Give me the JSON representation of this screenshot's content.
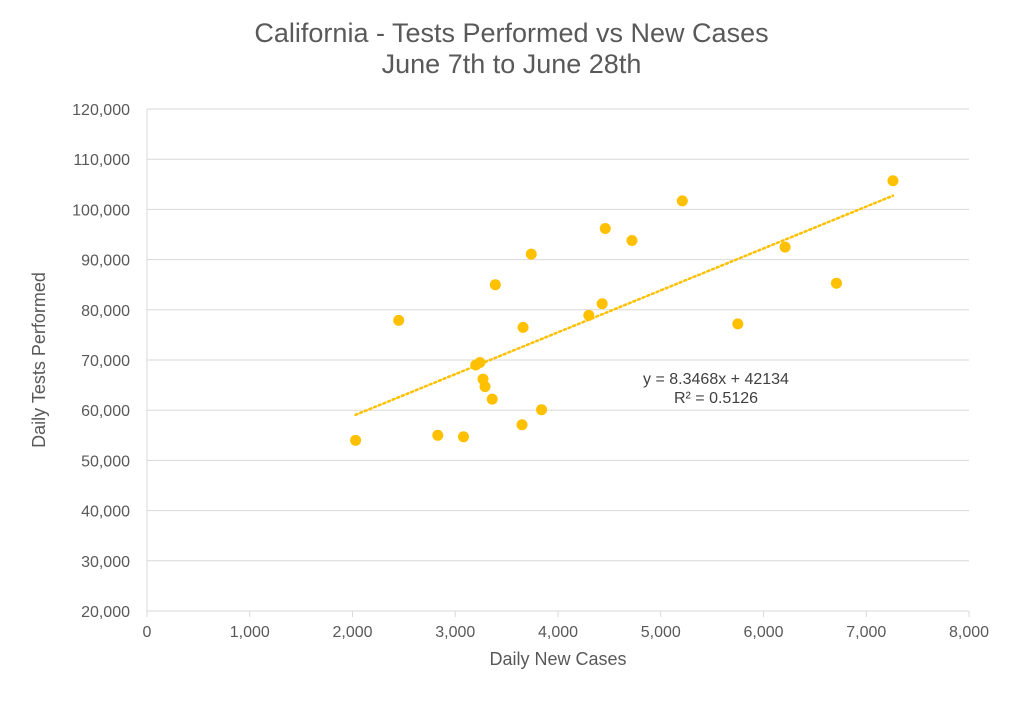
{
  "chart_data": {
    "type": "scatter",
    "title": "California - Tests Performed vs New Cases",
    "subtitle": "June 7th to June 28th",
    "xlabel": "Daily New Cases",
    "ylabel": "Daily Tests Performed",
    "xlim": [
      0,
      8000
    ],
    "ylim": [
      20000,
      120000
    ],
    "x_ticks": [
      0,
      1000,
      2000,
      3000,
      4000,
      5000,
      6000,
      7000,
      8000
    ],
    "y_ticks": [
      20000,
      30000,
      40000,
      50000,
      60000,
      70000,
      80000,
      90000,
      100000,
      110000,
      120000
    ],
    "x_tick_labels": [
      "0",
      "1,000",
      "2,000",
      "3,000",
      "4,000",
      "5,000",
      "6,000",
      "7,000",
      "8,000"
    ],
    "y_tick_labels": [
      "20,000",
      "30,000",
      "40,000",
      "50,000",
      "60,000",
      "70,000",
      "80,000",
      "90,000",
      "100,000",
      "110,000",
      "120,000"
    ],
    "grid": true,
    "series": [
      {
        "name": "Daily Tests Performed",
        "color": "#FFC000",
        "points": [
          {
            "x": 2030,
            "y": 54000
          },
          {
            "x": 2450,
            "y": 77900
          },
          {
            "x": 2830,
            "y": 55000
          },
          {
            "x": 3080,
            "y": 54700
          },
          {
            "x": 3200,
            "y": 69000
          },
          {
            "x": 3240,
            "y": 69500
          },
          {
            "x": 3270,
            "y": 66200
          },
          {
            "x": 3290,
            "y": 64700
          },
          {
            "x": 3360,
            "y": 62200
          },
          {
            "x": 3390,
            "y": 85000
          },
          {
            "x": 3650,
            "y": 57100
          },
          {
            "x": 3660,
            "y": 76500
          },
          {
            "x": 3740,
            "y": 91100
          },
          {
            "x": 3840,
            "y": 60100
          },
          {
            "x": 4300,
            "y": 78900
          },
          {
            "x": 4430,
            "y": 81200
          },
          {
            "x": 4460,
            "y": 96200
          },
          {
            "x": 4720,
            "y": 93800
          },
          {
            "x": 5210,
            "y": 101700
          },
          {
            "x": 5750,
            "y": 77200
          },
          {
            "x": 6210,
            "y": 92500
          },
          {
            "x": 6710,
            "y": 85300
          },
          {
            "x": 7260,
            "y": 105700
          }
        ]
      }
    ],
    "trendline": {
      "type": "linear",
      "color": "#FFC000",
      "slope": 8.3468,
      "intercept": 42134,
      "x_range": [
        2030,
        7260
      ],
      "equation": "y = 8.3468x + 42134",
      "r_squared": "R² = 0.5126"
    }
  }
}
